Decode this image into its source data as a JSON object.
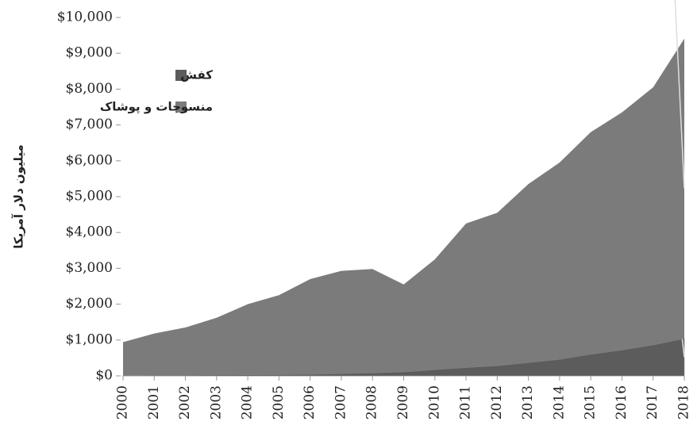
{
  "chart_data": {
    "type": "stacked_area",
    "y_label": "میلیون دلار آمریکا",
    "categories": [
      "2000",
      "2001",
      "2002",
      "2003",
      "2004",
      "2005",
      "2006",
      "2007",
      "2008",
      "2009",
      "2010",
      "2011",
      "2012",
      "2013",
      "2014",
      "2015",
      "2016",
      "2017",
      "2018"
    ],
    "series": [
      {
        "name": "کفش",
        "color": "#5c5c5c",
        "values": [
          10,
          15,
          20,
          25,
          30,
          35,
          40,
          60,
          80,
          110,
          170,
          230,
          280,
          370,
          460,
          600,
          720,
          860,
          1041
        ],
        "value_labels": [
          null,
          null,
          null,
          null,
          null,
          null,
          null,
          null,
          null,
          null,
          null,
          null,
          null,
          null,
          null,
          null,
          null,
          null,
          "$1,041"
        ]
      },
      {
        "name": "منسوجات و پوشاک",
        "color": "#7b7b7b",
        "values": [
          930,
          1165,
          1330,
          1595,
          1970,
          2215,
          2660,
          2870,
          2900,
          2440,
          3080,
          4020,
          4270,
          4980,
          5490,
          6200,
          6630,
          7190,
          8367
        ],
        "value_labels": [
          null,
          null,
          null,
          null,
          null,
          null,
          null,
          null,
          null,
          null,
          null,
          null,
          null,
          null,
          null,
          null,
          null,
          null,
          "$8,367"
        ]
      }
    ],
    "ylim": [
      0,
      10000
    ],
    "yticks": [
      {
        "value": 0,
        "label": "$0"
      },
      {
        "value": 1000,
        "label": "$1,000"
      },
      {
        "value": 2000,
        "label": "$2,000"
      },
      {
        "value": 3000,
        "label": "$3,000"
      },
      {
        "value": 4000,
        "label": "$4,000"
      },
      {
        "value": 5000,
        "label": "$5,000"
      },
      {
        "value": 6000,
        "label": "$6,000"
      },
      {
        "value": 7000,
        "label": "$7,000"
      },
      {
        "value": 8000,
        "label": "$8,000"
      },
      {
        "value": 9000,
        "label": "$9,000"
      },
      {
        "value": 10000,
        "label": "$10,000"
      }
    ],
    "grid": false
  }
}
